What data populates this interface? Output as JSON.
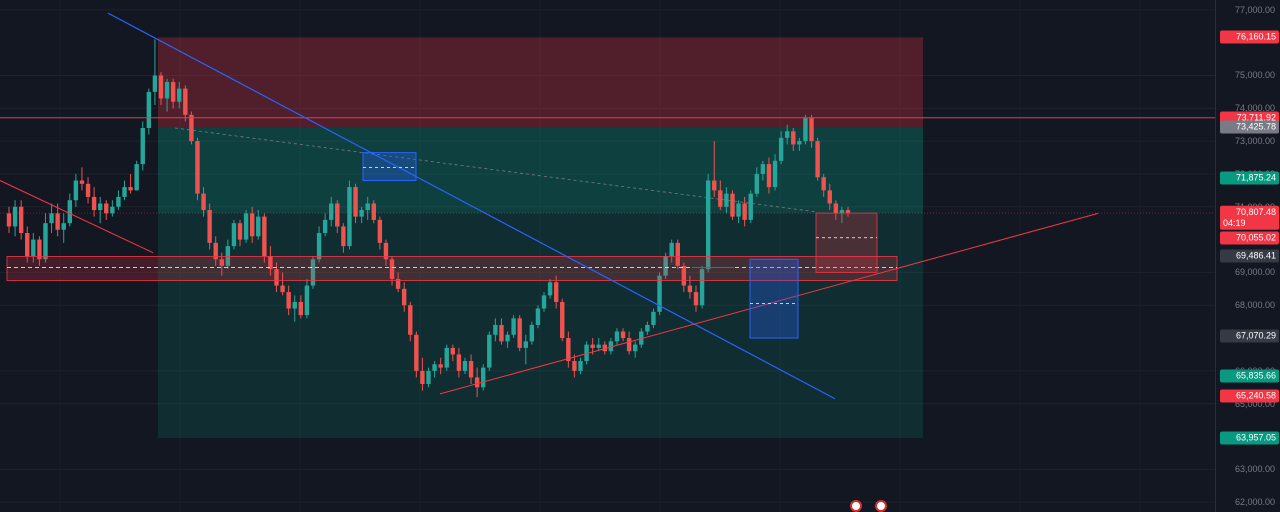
{
  "chart_data": {
    "type": "candlestick",
    "ylim": [
      61700,
      77300
    ],
    "y_ticks": [
      "62,000.00",
      "63,000.00",
      "65,000.00",
      "66,000.00",
      "68,000.00",
      "69,000.00",
      "71,000.00",
      "72,000.00",
      "73,000.00",
      "74,000.00",
      "75,000.00",
      "77,000.00"
    ],
    "price_labels": [
      {
        "text": "76,160.15",
        "bg": "#f23645",
        "price": 76160.15
      },
      {
        "text": "73,711.92",
        "bg": "#f23645",
        "price": 73711.92
      },
      {
        "text": "73,425.78",
        "bg": "#787b86",
        "price": 73425.78
      },
      {
        "text": "71,875.24",
        "bg": "#089981",
        "price": 71875.24
      },
      {
        "text": "70,807.48",
        "sub": "04:19",
        "bg": "#f23645",
        "price": 70807.48
      },
      {
        "text": "70,055.02",
        "bg": "#f23645",
        "price": 70055.02
      },
      {
        "text": "69,486.41",
        "bg": "#363a45",
        "price": 69486.41
      },
      {
        "text": "67,070.29",
        "bg": "#363a45",
        "price": 67070.29
      },
      {
        "text": "65,835.66",
        "bg": "#089981",
        "price": 65835.66
      },
      {
        "text": "65,240.58",
        "bg": "#f23645",
        "price": 65240.58
      },
      {
        "text": "63,957.05",
        "bg": "#089981",
        "price": 63957.05
      }
    ],
    "colors": {
      "up": "#26a69a",
      "down": "#ef5350",
      "background": "#131722",
      "trend_blue": "#2962ff",
      "trend_red": "#f23645"
    },
    "candles": [
      [
        70800,
        71000,
        70200,
        70400
      ],
      [
        70400,
        71200,
        70100,
        71000
      ],
      [
        71000,
        71200,
        70000,
        70200
      ],
      [
        70200,
        70400,
        69300,
        69500
      ],
      [
        69500,
        70200,
        69300,
        70000
      ],
      [
        70000,
        70100,
        69200,
        69400
      ],
      [
        69400,
        70800,
        69300,
        70500
      ],
      [
        70500,
        71100,
        70200,
        70800
      ],
      [
        70800,
        71100,
        70100,
        70300
      ],
      [
        70300,
        70800,
        69900,
        70500
      ],
      [
        70500,
        71400,
        70400,
        71200
      ],
      [
        71200,
        72000,
        71000,
        71800
      ],
      [
        71800,
        72200,
        71500,
        71700
      ],
      [
        71700,
        71900,
        71100,
        71300
      ],
      [
        71300,
        71600,
        70700,
        70900
      ],
      [
        70900,
        71300,
        70500,
        71100
      ],
      [
        71100,
        71200,
        70600,
        70800
      ],
      [
        70800,
        71200,
        70700,
        71000
      ],
      [
        71000,
        71500,
        70900,
        71300
      ],
      [
        71300,
        71800,
        71200,
        71600
      ],
      [
        71600,
        72000,
        71400,
        71500
      ],
      [
        71500,
        72400,
        71500,
        72300
      ],
      [
        72300,
        73600,
        72100,
        73400
      ],
      [
        73400,
        74600,
        73200,
        74500
      ],
      [
        74500,
        76100,
        74100,
        75000
      ],
      [
        75000,
        75100,
        74100,
        74300
      ],
      [
        74300,
        74900,
        73900,
        74800
      ],
      [
        74800,
        74900,
        74000,
        74200
      ],
      [
        74200,
        74800,
        74000,
        74600
      ],
      [
        74600,
        74700,
        73600,
        73800
      ],
      [
        73800,
        73900,
        72900,
        73000
      ],
      [
        73000,
        73100,
        71200,
        71400
      ],
      [
        71400,
        71600,
        70700,
        70900
      ],
      [
        70900,
        71100,
        69700,
        69900
      ],
      [
        69900,
        70100,
        69200,
        69400
      ],
      [
        69400,
        69600,
        68900,
        69200
      ],
      [
        69200,
        70000,
        69100,
        69800
      ],
      [
        69800,
        70600,
        69700,
        70500
      ],
      [
        70500,
        70600,
        69800,
        70000
      ],
      [
        70000,
        70900,
        69900,
        70800
      ],
      [
        70800,
        71000,
        69900,
        70100
      ],
      [
        70100,
        70900,
        70000,
        70700
      ],
      [
        70700,
        70800,
        69300,
        69500
      ],
      [
        69500,
        69800,
        68900,
        69100
      ],
      [
        69100,
        69300,
        68400,
        68600
      ],
      [
        68600,
        69000,
        68300,
        68400
      ],
      [
        68400,
        68600,
        67700,
        67900
      ],
      [
        67900,
        68300,
        67500,
        68100
      ],
      [
        68100,
        68300,
        67600,
        67700
      ],
      [
        67700,
        68800,
        67600,
        68600
      ],
      [
        68600,
        69500,
        68500,
        69400
      ],
      [
        69400,
        70400,
        69300,
        70200
      ],
      [
        70200,
        70800,
        70100,
        70600
      ],
      [
        70600,
        71300,
        70400,
        71100
      ],
      [
        71100,
        71200,
        70200,
        70400
      ],
      [
        70400,
        70500,
        69600,
        69800
      ],
      [
        69800,
        71800,
        69700,
        71600
      ],
      [
        71600,
        71700,
        70500,
        70700
      ],
      [
        70700,
        71000,
        70500,
        70900
      ],
      [
        70900,
        71300,
        70600,
        71100
      ],
      [
        71100,
        71200,
        70500,
        70600
      ],
      [
        70600,
        70700,
        69700,
        69900
      ],
      [
        69900,
        70000,
        69200,
        69400
      ],
      [
        69400,
        69500,
        68600,
        68800
      ],
      [
        68800,
        69000,
        68400,
        68500
      ],
      [
        68500,
        68700,
        67800,
        68000
      ],
      [
        68000,
        68100,
        66900,
        67100
      ],
      [
        67100,
        67200,
        65800,
        66000
      ],
      [
        66000,
        66400,
        65400,
        65600
      ],
      [
        65600,
        66100,
        65500,
        66000
      ],
      [
        66000,
        66300,
        65800,
        66200
      ],
      [
        66200,
        66400,
        65900,
        66100
      ],
      [
        66100,
        66800,
        66000,
        66700
      ],
      [
        66700,
        66800,
        66300,
        66500
      ],
      [
        66500,
        66700,
        65800,
        66000
      ],
      [
        66000,
        66400,
        65900,
        66300
      ],
      [
        66300,
        66500,
        65600,
        65800
      ],
      [
        65800,
        66100,
        65200,
        65500
      ],
      [
        65500,
        66200,
        65400,
        66100
      ],
      [
        66100,
        67200,
        66000,
        67100
      ],
      [
        67100,
        67600,
        66900,
        67400
      ],
      [
        67400,
        67600,
        66800,
        66900
      ],
      [
        66900,
        67200,
        66700,
        67100
      ],
      [
        67100,
        67700,
        67000,
        67600
      ],
      [
        67600,
        67700,
        66600,
        66700
      ],
      [
        66700,
        67100,
        66200,
        66900
      ],
      [
        66900,
        67500,
        66800,
        67400
      ],
      [
        67400,
        68000,
        67300,
        67900
      ],
      [
        67900,
        68400,
        67800,
        68300
      ],
      [
        68300,
        68800,
        68200,
        68700
      ],
      [
        68700,
        68900,
        67900,
        68100
      ],
      [
        68100,
        68200,
        66900,
        67000
      ],
      [
        67000,
        67200,
        66100,
        66300
      ],
      [
        66300,
        66500,
        65800,
        66000
      ],
      [
        66000,
        66400,
        65900,
        66300
      ],
      [
        66300,
        66900,
        66200,
        66800
      ],
      [
        66800,
        67000,
        66500,
        66700
      ],
      [
        66700,
        67000,
        66600,
        66800
      ],
      [
        66800,
        66900,
        66500,
        66600
      ],
      [
        66600,
        67000,
        66500,
        66900
      ],
      [
        66900,
        67300,
        66800,
        67200
      ],
      [
        67200,
        67300,
        66900,
        67000
      ],
      [
        67000,
        67200,
        66500,
        66600
      ],
      [
        66600,
        66900,
        66400,
        66800
      ],
      [
        66800,
        67300,
        66700,
        67200
      ],
      [
        67200,
        67500,
        67100,
        67400
      ],
      [
        67400,
        67900,
        67300,
        67800
      ],
      [
        67800,
        69000,
        67700,
        68900
      ],
      [
        68900,
        69600,
        68800,
        69500
      ],
      [
        69500,
        70000,
        69300,
        69900
      ],
      [
        69900,
        70000,
        69100,
        69200
      ],
      [
        69200,
        69300,
        68400,
        68600
      ],
      [
        68600,
        68900,
        68200,
        68400
      ],
      [
        68400,
        68600,
        67800,
        68000
      ],
      [
        68000,
        69200,
        67900,
        69100
      ],
      [
        69100,
        72000,
        69000,
        71800
      ],
      [
        71800,
        73000,
        71300,
        71500
      ],
      [
        71500,
        71800,
        70900,
        71000
      ],
      [
        71000,
        71600,
        70800,
        71400
      ],
      [
        71400,
        71500,
        70600,
        70700
      ],
      [
        70700,
        71200,
        70500,
        71100
      ],
      [
        71100,
        71300,
        70400,
        70600
      ],
      [
        70600,
        71500,
        70500,
        71400
      ],
      [
        71400,
        72200,
        71300,
        72000
      ],
      [
        72000,
        72400,
        71800,
        72300
      ],
      [
        72300,
        72500,
        71400,
        71600
      ],
      [
        71600,
        72600,
        71500,
        72400
      ],
      [
        72400,
        73300,
        72300,
        73100
      ],
      [
        73100,
        73500,
        72900,
        73300
      ],
      [
        73300,
        73400,
        72700,
        72900
      ],
      [
        72900,
        73100,
        72700,
        73000
      ],
      [
        73000,
        73800,
        72900,
        73700
      ],
      [
        73700,
        73800,
        72800,
        73000
      ],
      [
        73000,
        73100,
        71800,
        71900
      ],
      [
        71900,
        72000,
        71300,
        71500
      ],
      [
        71500,
        71700,
        70900,
        71100
      ],
      [
        71100,
        71200,
        70600,
        70800
      ],
      [
        70800,
        71000,
        70500,
        70900
      ],
      [
        70900,
        71000,
        70700,
        70807.48
      ]
    ]
  },
  "event_flags": [
    "🇺🇸",
    "🇺🇸"
  ]
}
